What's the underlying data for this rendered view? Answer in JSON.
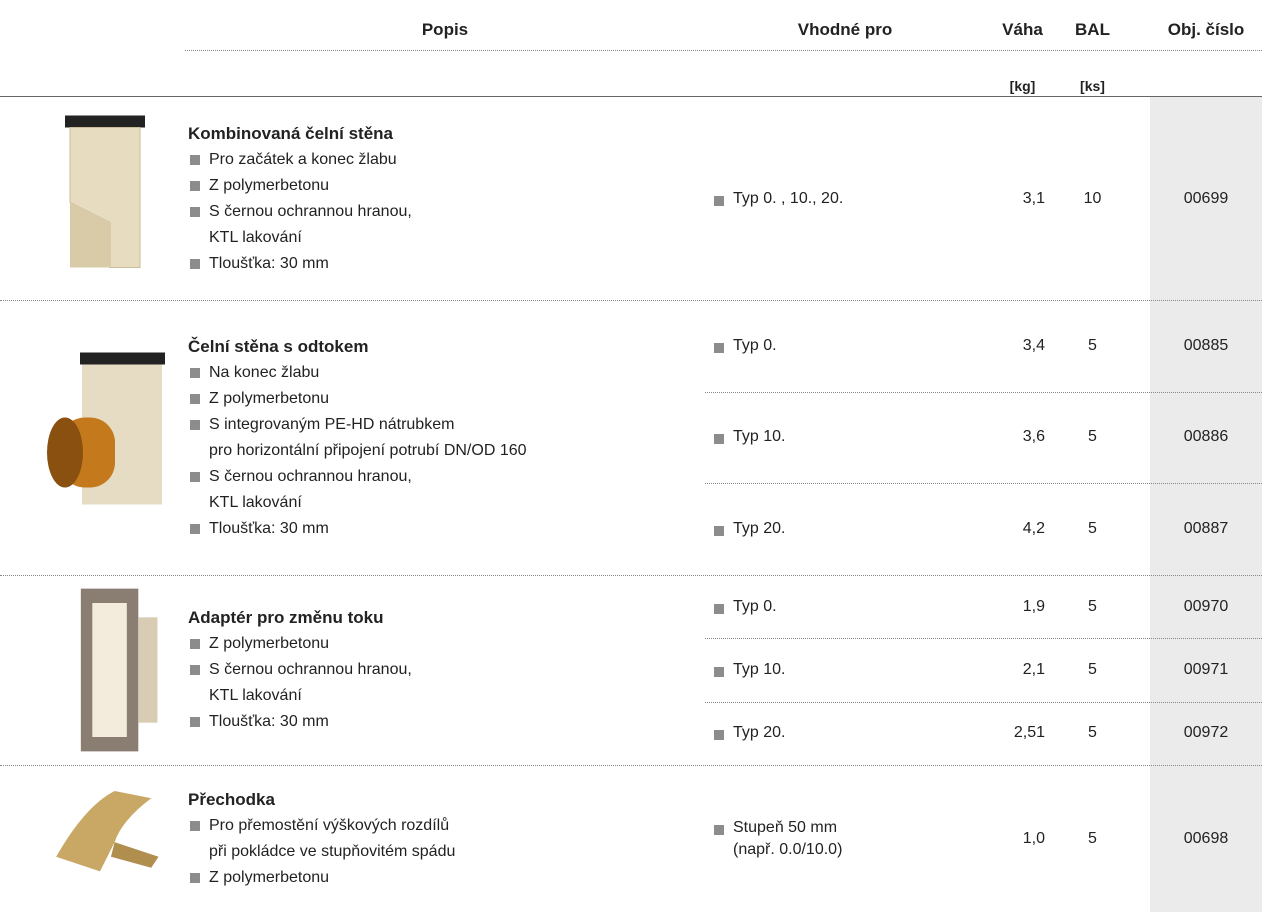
{
  "header": {
    "columns": [
      "Popis",
      "Vhodné pro",
      "Váha",
      "BAL",
      "Obj. číslo"
    ],
    "units": [
      "[kg]",
      "[ks]"
    ]
  },
  "groups": [
    {
      "title": "Kombinovaná čelní stěna",
      "bullets": [
        [
          "Pro začátek a konec žlabu"
        ],
        [
          "Z polymerbetonu"
        ],
        [
          "S černou ochrannou hranou,",
          "KTL lakování"
        ],
        [
          "Tloušťka: 30 mm"
        ]
      ],
      "rows": [
        {
          "suitable": [
            "Typ 0. , 10., 20."
          ],
          "weight": "3,1",
          "bal": "10",
          "code": "00699"
        }
      ]
    },
    {
      "title": "Čelní stěna s odtokem",
      "bullets": [
        [
          "Na konec žlabu"
        ],
        [
          "Z polymerbetonu"
        ],
        [
          "S integrovaným PE-HD nátrubkem",
          "pro horizontální připojení potrubí DN/OD 160"
        ],
        [
          "S černou ochrannou hranou,",
          "KTL lakování"
        ],
        [
          "Tloušťka: 30 mm"
        ]
      ],
      "rows": [
        {
          "suitable": [
            "Typ 0."
          ],
          "weight": "3,4",
          "bal": "5",
          "code": "00885"
        },
        {
          "suitable": [
            "Typ 10."
          ],
          "weight": "3,6",
          "bal": "5",
          "code": "00886"
        },
        {
          "suitable": [
            "Typ 20."
          ],
          "weight": "4,2",
          "bal": "5",
          "code": "00887"
        }
      ]
    },
    {
      "title": "Adaptér pro změnu toku",
      "bullets": [
        [
          "Z polymerbetonu"
        ],
        [
          "S černou ochrannou hranou,",
          "KTL lakování"
        ],
        [
          "Tloušťka: 30 mm"
        ]
      ],
      "rows": [
        {
          "suitable": [
            "Typ 0."
          ],
          "weight": "1,9",
          "bal": "5",
          "code": "00970"
        },
        {
          "suitable": [
            "Typ 10."
          ],
          "weight": "2,1",
          "bal": "5",
          "code": "00971"
        },
        {
          "suitable": [
            "Typ 20."
          ],
          "weight": "2,51",
          "bal": "5",
          "code": "00972"
        }
      ]
    },
    {
      "title": "Přechodka",
      "bullets": [
        [
          "Pro přemostění výškových rozdílů",
          "při pokládce ve stupňovitém spádu"
        ],
        [
          "Z polymerbetonu"
        ]
      ],
      "rows": [
        {
          "suitable": [
            "Stupeň 50 mm",
            "(např. 0.0/10.0)"
          ],
          "weight": "1,0",
          "bal": "5",
          "code": "00698"
        }
      ]
    }
  ]
}
